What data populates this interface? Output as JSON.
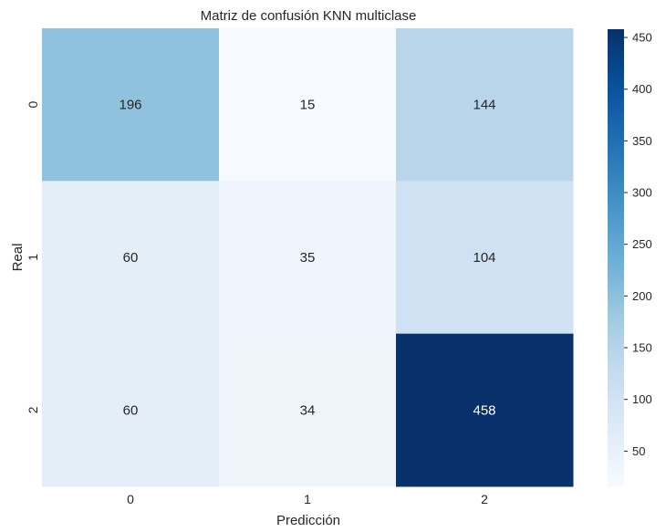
{
  "chart_data": {
    "type": "heatmap",
    "title": "Matriz de confusión KNN multiclase",
    "xlabel": "Predicción",
    "ylabel": "Real",
    "x_categories": [
      "0",
      "1",
      "2"
    ],
    "y_categories": [
      "0",
      "1",
      "2"
    ],
    "matrix": [
      [
        196,
        15,
        144
      ],
      [
        60,
        35,
        104
      ],
      [
        60,
        34,
        458
      ]
    ],
    "colormap": "Blues",
    "colorbar": {
      "min": 15,
      "max": 458,
      "ticks": [
        50,
        100,
        150,
        200,
        250,
        300,
        350,
        400,
        450
      ]
    },
    "grid": false
  }
}
